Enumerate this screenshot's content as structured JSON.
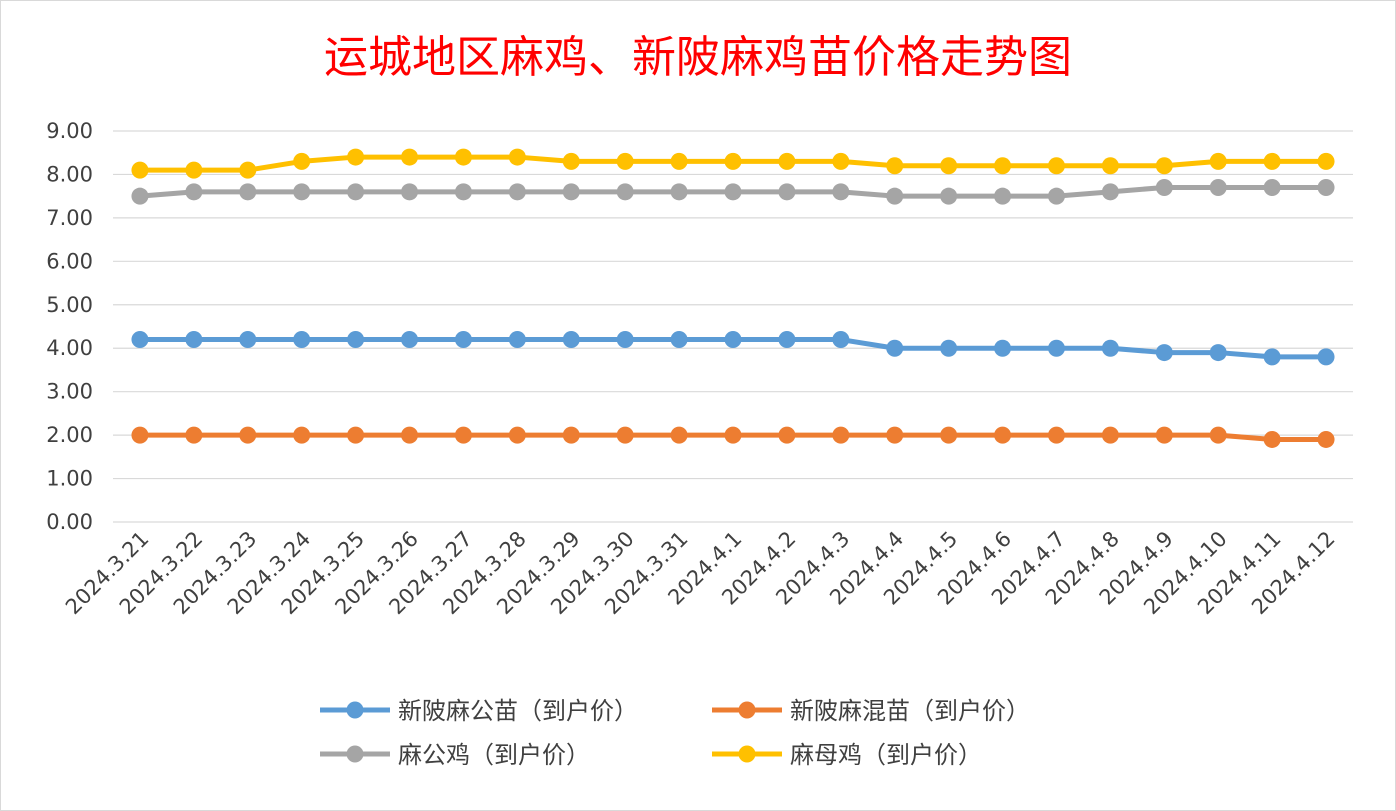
{
  "chart_data": {
    "type": "line",
    "title": "运城地区麻鸡、新陂麻鸡苗价格走势图",
    "xlabel": "",
    "ylabel": "",
    "ylim": [
      0,
      9
    ],
    "yticks": [
      "0.00",
      "1.00",
      "2.00",
      "3.00",
      "4.00",
      "5.00",
      "6.00",
      "7.00",
      "8.00",
      "9.00"
    ],
    "grid": true,
    "legend_position": "bottom",
    "categories": [
      "2024.3.21",
      "2024.3.22",
      "2024.3.23",
      "2024.3.24",
      "2024.3.25",
      "2024.3.26",
      "2024.3.27",
      "2024.3.28",
      "2024.3.29",
      "2024.3.30",
      "2024.3.31",
      "2024.4.1",
      "2024.4.2",
      "2024.4.3",
      "2024.4.4",
      "2024.4.5",
      "2024.4.6",
      "2024.4.7",
      "2024.4.8",
      "2024.4.9",
      "2024.4.10",
      "2024.4.11",
      "2024.4.12"
    ],
    "series": [
      {
        "name": "新陂麻公苗（到户价）",
        "color": "#5b9bd5",
        "values": [
          4.2,
          4.2,
          4.2,
          4.2,
          4.2,
          4.2,
          4.2,
          4.2,
          4.2,
          4.2,
          4.2,
          4.2,
          4.2,
          4.2,
          4.0,
          4.0,
          4.0,
          4.0,
          4.0,
          3.9,
          3.9,
          3.8,
          3.8
        ]
      },
      {
        "name": "新陂麻混苗（到户价）",
        "color": "#ed7d31",
        "values": [
          2.0,
          2.0,
          2.0,
          2.0,
          2.0,
          2.0,
          2.0,
          2.0,
          2.0,
          2.0,
          2.0,
          2.0,
          2.0,
          2.0,
          2.0,
          2.0,
          2.0,
          2.0,
          2.0,
          2.0,
          2.0,
          1.9,
          1.9
        ]
      },
      {
        "name": "麻公鸡（到户价）",
        "color": "#a5a5a5",
        "values": [
          7.5,
          7.6,
          7.6,
          7.6,
          7.6,
          7.6,
          7.6,
          7.6,
          7.6,
          7.6,
          7.6,
          7.6,
          7.6,
          7.6,
          7.5,
          7.5,
          7.5,
          7.5,
          7.6,
          7.7,
          7.7,
          7.7,
          7.7
        ]
      },
      {
        "name": "麻母鸡（到户价）",
        "color": "#ffc000",
        "values": [
          8.1,
          8.1,
          8.1,
          8.3,
          8.4,
          8.4,
          8.4,
          8.4,
          8.3,
          8.3,
          8.3,
          8.3,
          8.3,
          8.3,
          8.2,
          8.2,
          8.2,
          8.2,
          8.2,
          8.2,
          8.3,
          8.3,
          8.3
        ]
      }
    ]
  }
}
